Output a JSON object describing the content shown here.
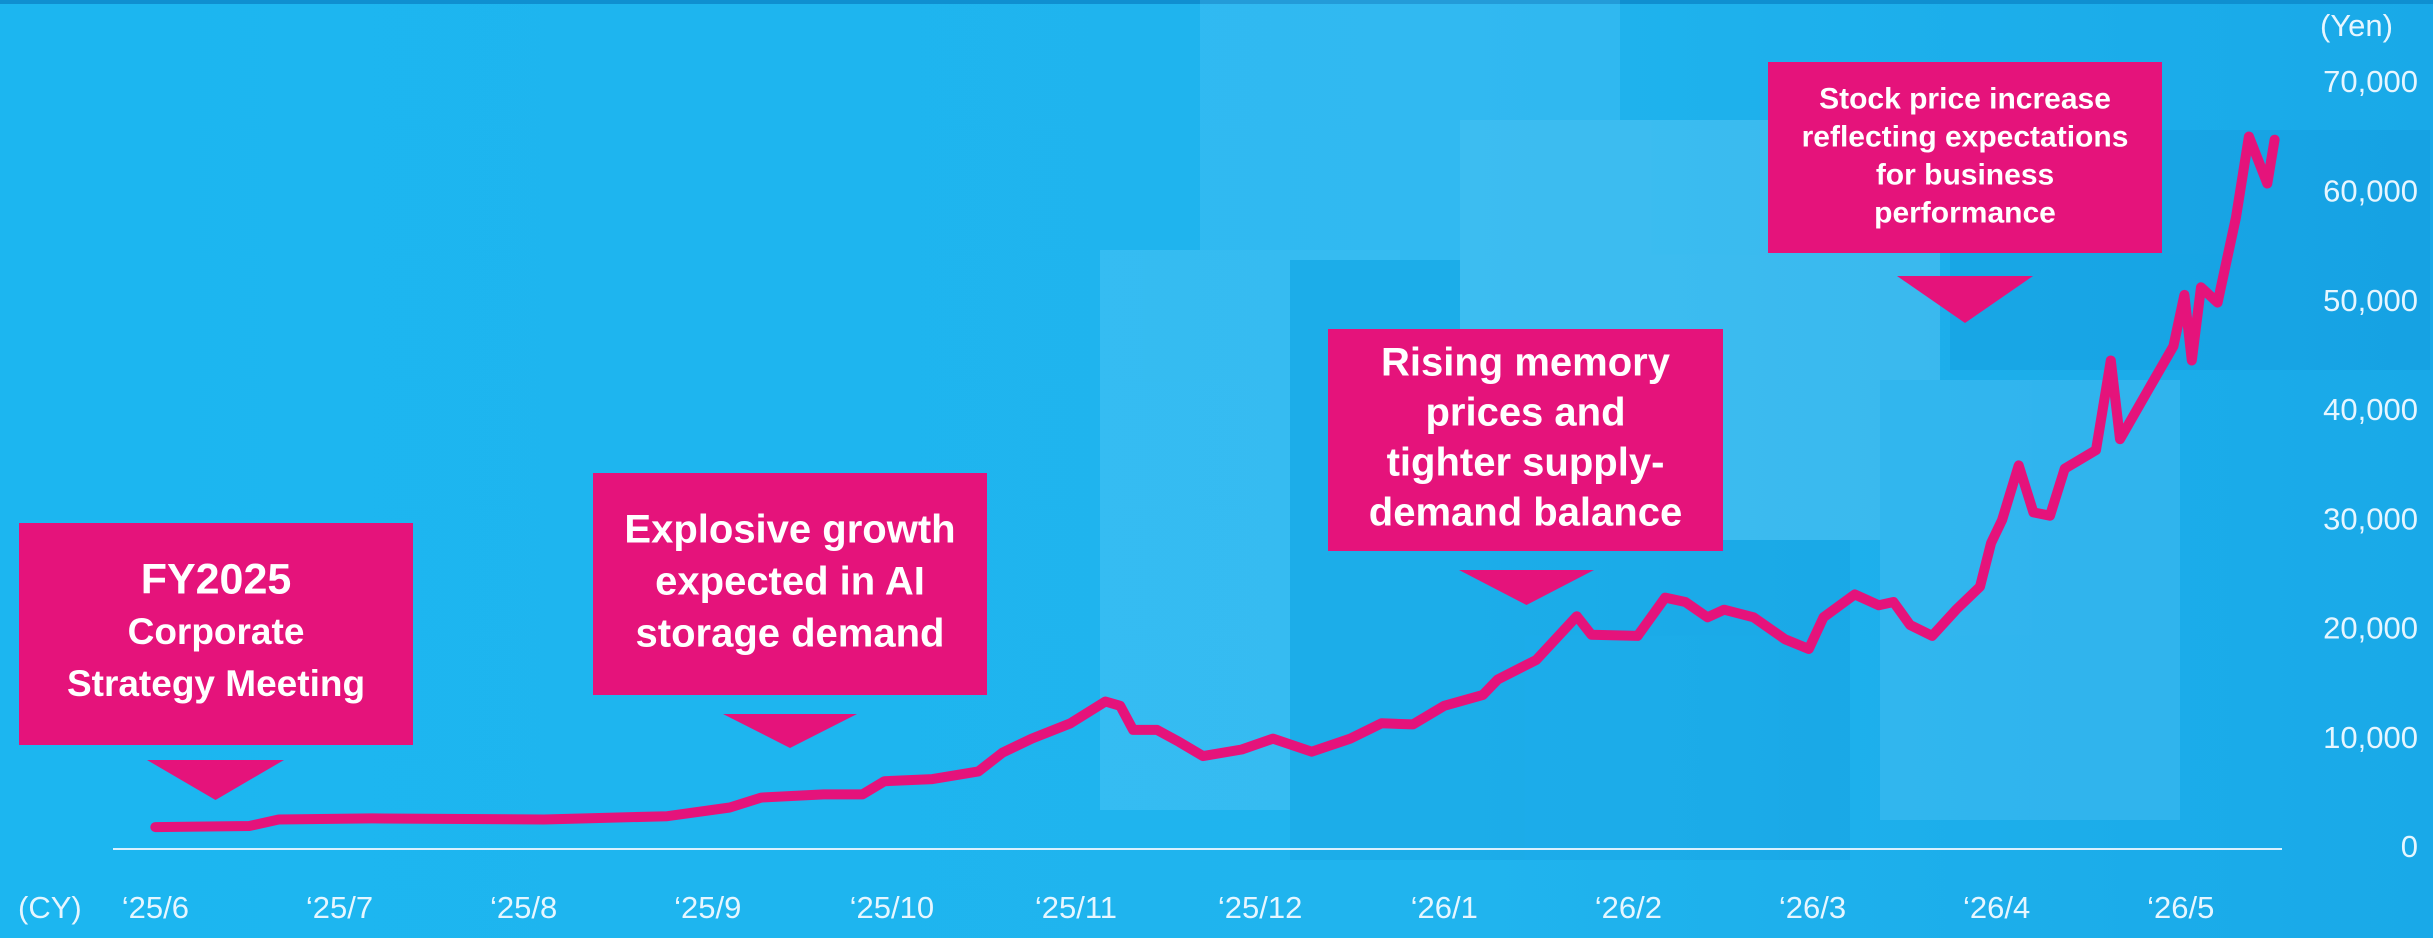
{
  "chart_data": {
    "type": "line",
    "color": "#e5137b",
    "y_unit": "(Yen)",
    "x_unit": "(CY)",
    "x": [
      0,
      0.51,
      0.67,
      1.18,
      2.11,
      2.78,
      3.12,
      3.29,
      3.63,
      3.84,
      3.96,
      4.22,
      4.47,
      4.6,
      4.76,
      4.97,
      5.16,
      5.24,
      5.31,
      5.44,
      5.56,
      5.69,
      5.9,
      6.07,
      6.28,
      6.49,
      6.66,
      6.83,
      7.0,
      7.21,
      7.29,
      7.5,
      7.72,
      7.8,
      8.05,
      8.2,
      8.31,
      8.43,
      8.52,
      8.68,
      8.85,
      8.98,
      9.06,
      9.23,
      9.36,
      9.44,
      9.53,
      9.65,
      9.78,
      9.91,
      9.97,
      10.03,
      10.12,
      10.2,
      10.29,
      10.37,
      10.54,
      10.62,
      10.67,
      10.83,
      10.96,
      11.02,
      11.06,
      11.11,
      11.2,
      11.3,
      11.37,
      11.47,
      11.51
    ],
    "values": [
      2000,
      2100,
      2700,
      2800,
      2700,
      3000,
      3800,
      4700,
      5000,
      5000,
      6200,
      6400,
      7100,
      8800,
      10100,
      11500,
      13500,
      13100,
      10900,
      10900,
      9800,
      8500,
      9100,
      10100,
      8900,
      10100,
      11500,
      11400,
      13100,
      14100,
      15500,
      17300,
      21300,
      19600,
      19500,
      23000,
      22600,
      21200,
      21900,
      21200,
      19200,
      18300,
      21200,
      23300,
      22300,
      22600,
      20500,
      19500,
      21900,
      24000,
      28000,
      30100,
      35100,
      30800,
      30500,
      34800,
      36500,
      44700,
      37500,
      42200,
      46000,
      50700,
      44700,
      51400,
      50000,
      57800,
      65200,
      60900,
      64900
    ],
    "xlim": [
      -0.23,
      11.55
    ],
    "xticks": [
      {
        "value": 0,
        "label": "‘25/6"
      },
      {
        "value": 1,
        "label": "‘25/7"
      },
      {
        "value": 2,
        "label": "‘25/8"
      },
      {
        "value": 3,
        "label": "‘25/9"
      },
      {
        "value": 4,
        "label": "‘25/10"
      },
      {
        "value": 5,
        "label": "‘25/11"
      },
      {
        "value": 6,
        "label": "‘25/12"
      },
      {
        "value": 7,
        "label": "‘26/1"
      },
      {
        "value": 8,
        "label": "‘26/2"
      },
      {
        "value": 9,
        "label": "‘26/3"
      },
      {
        "value": 10,
        "label": "‘26/4"
      },
      {
        "value": 11,
        "label": "‘26/5"
      }
    ],
    "ylim": [
      0,
      70000
    ],
    "yticks": [
      0,
      {
        "value": 10000,
        "label": "10,000"
      },
      {
        "value": 20000,
        "label": "20,000"
      },
      {
        "value": 30000,
        "label": "30,000"
      },
      {
        "value": 40000,
        "label": "40,000"
      },
      {
        "value": 50000,
        "label": "50,000"
      },
      {
        "value": 60000,
        "label": "60,000"
      },
      {
        "value": 70000,
        "label": "70,000"
      }
    ],
    "annotations": [
      {
        "lines": [
          "FY2025",
          "Corporate",
          "Strategy Meeting"
        ]
      },
      {
        "lines": [
          "Explosive growth",
          "expected in AI",
          "storage demand"
        ]
      },
      {
        "lines": [
          "Rising memory",
          "prices and",
          "tighter supply-",
          "demand balance"
        ]
      },
      {
        "lines": [
          "Stock price increase",
          "reflecting expectations",
          "for business",
          "performance"
        ]
      }
    ]
  }
}
